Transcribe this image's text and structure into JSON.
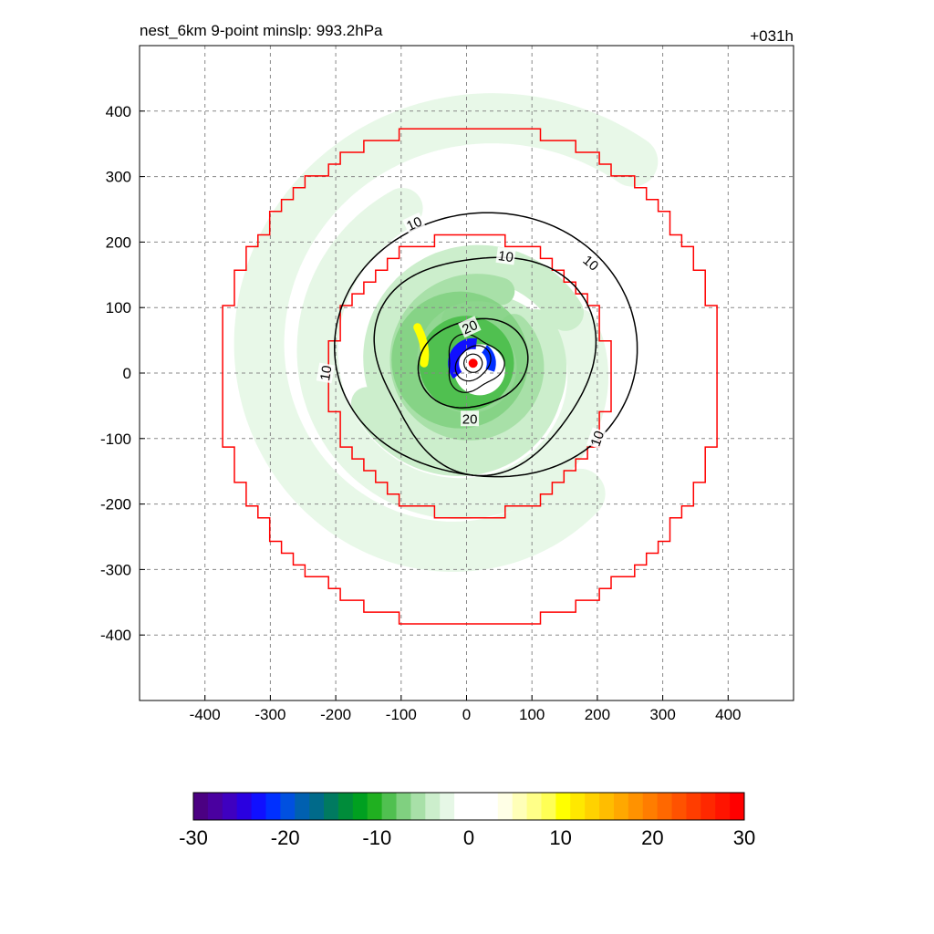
{
  "header": {
    "title_left": "nest_6km  9-point minslp: 993.2hPa",
    "title_right": "+031h"
  },
  "chart_data": {
    "type": "heatmap",
    "title": "nest_6km  9-point minslp: 993.2hPa",
    "forecast_hour_label": "+031h",
    "xlim": [
      -500,
      500
    ],
    "ylim": [
      -500,
      500
    ],
    "x_ticks": [
      -400,
      -300,
      -200,
      -100,
      0,
      100,
      200,
      300,
      400
    ],
    "y_ticks": [
      400,
      300,
      200,
      100,
      0,
      -100,
      -200,
      -300,
      -400
    ],
    "grid": true,
    "center_marker": {
      "x": 10,
      "y": 15,
      "color": "#ff0000"
    },
    "red_boundaries": [
      {
        "name": "outer_stepped_domain",
        "radius": 385,
        "color": "#ff0000"
      },
      {
        "name": "inner_stepped_domain",
        "radius": 215,
        "color": "#ff0000"
      }
    ],
    "contours": [
      {
        "level": 10,
        "labels": [
          "10",
          "10",
          "10",
          "10",
          "10"
        ]
      },
      {
        "level": 20,
        "labels": [
          "20",
          "20"
        ]
      }
    ],
    "colorbar": {
      "min": -30,
      "max": 30,
      "tick_values": [
        -30,
        -20,
        -10,
        0,
        10,
        20,
        30
      ],
      "tick_labels": [
        "-30",
        "-20",
        "-10",
        "0",
        "10",
        "20",
        "30"
      ],
      "colors": [
        "#4b0082",
        "#4a00a0",
        "#3f00c0",
        "#2a00e0",
        "#1010ff",
        "#0030ff",
        "#0050e0",
        "#0060b0",
        "#006a8a",
        "#007a60",
        "#008c3a",
        "#00a020",
        "#20b020",
        "#50c050",
        "#80d080",
        "#a8e0a8",
        "#cceecc",
        "#e6f7e6",
        "#ffffff",
        "#ffffff",
        "#ffffff",
        "#ffffe6",
        "#ffffb8",
        "#ffff88",
        "#ffff55",
        "#ffff00",
        "#ffe800",
        "#ffd200",
        "#ffbd00",
        "#ffa800",
        "#ff9200",
        "#ff7d00",
        "#ff6800",
        "#ff5200",
        "#ff3d00",
        "#ff2800",
        "#ff1400",
        "#ff0000"
      ]
    }
  }
}
